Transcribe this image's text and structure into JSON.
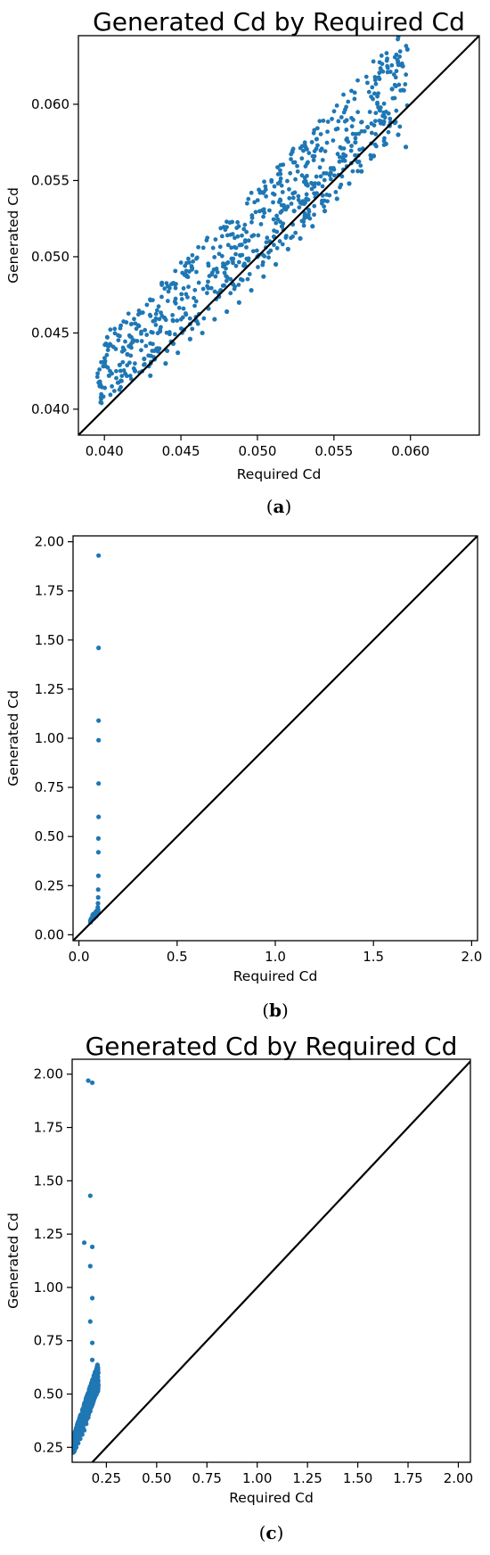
{
  "colors": {
    "points": "#1f77b4",
    "diagonal": "#000000",
    "axes": "#000000"
  },
  "chart_data": [
    {
      "type": "scatter",
      "title": "Generated Cd by Required Cd",
      "xlabel": "Required Cd",
      "ylabel": "Generated Cd",
      "xlim": [
        0.0383,
        0.0645
      ],
      "ylim": [
        0.0383,
        0.0645
      ],
      "xticks": [
        "0.040",
        "0.045",
        "0.050",
        "0.055",
        "0.060"
      ],
      "yticks": [
        "0.040",
        "0.045",
        "0.050",
        "0.055",
        "0.060"
      ],
      "reference_line": "y = x",
      "caption_letter": "a",
      "grid": false,
      "series": [
        {
          "points": [
            [
              0.0397,
              0.0418
            ],
            [
              0.0403,
              0.0422
            ],
            [
              0.041,
              0.0429
            ],
            [
              0.0415,
              0.0436
            ],
            [
              0.042,
              0.0425
            ],
            [
              0.0426,
              0.0433
            ],
            [
              0.043,
              0.0422
            ],
            [
              0.0435,
              0.0438
            ],
            [
              0.044,
              0.043
            ],
            [
              0.0445,
              0.0443
            ],
            [
              0.0448,
              0.0437
            ],
            [
              0.0452,
              0.0452
            ],
            [
              0.0456,
              0.0446
            ],
            [
              0.046,
              0.0458
            ],
            [
              0.0464,
              0.045
            ],
            [
              0.0468,
              0.0466
            ],
            [
              0.0472,
              0.0459
            ],
            [
              0.0476,
              0.0478
            ],
            [
              0.048,
              0.0464
            ],
            [
              0.0484,
              0.0482
            ],
            [
              0.0488,
              0.047
            ],
            [
              0.0492,
              0.0494
            ],
            [
              0.0496,
              0.0478
            ],
            [
              0.05,
              0.05
            ],
            [
              0.0504,
              0.0487
            ],
            [
              0.0508,
              0.051
            ],
            [
              0.0512,
              0.0495
            ],
            [
              0.0516,
              0.052
            ],
            [
              0.052,
              0.0505
            ],
            [
              0.0524,
              0.053
            ],
            [
              0.0528,
              0.0512
            ],
            [
              0.0532,
              0.0538
            ],
            [
              0.0536,
              0.052
            ],
            [
              0.054,
              0.0548
            ],
            [
              0.0544,
              0.053
            ],
            [
              0.0548,
              0.0558
            ],
            [
              0.0552,
              0.0538
            ],
            [
              0.0556,
              0.0565
            ],
            [
              0.056,
              0.0548
            ],
            [
              0.0564,
              0.0575
            ],
            [
              0.0568,
              0.0556
            ],
            [
              0.0572,
              0.0585
            ],
            [
              0.0576,
              0.0566
            ],
            [
              0.058,
              0.0596
            ],
            [
              0.0584,
              0.0574
            ],
            [
              0.0588,
              0.061
            ],
            [
              0.0592,
              0.058
            ],
            [
              0.0595,
              0.0625
            ],
            [
              0.0597,
              0.0572
            ],
            [
              0.0598,
              0.0636
            ]
          ]
        }
      ]
    },
    {
      "type": "scatter",
      "title": "",
      "xlabel": "Required Cd",
      "ylabel": "Generated Cd",
      "xlim": [
        -0.03,
        2.03
      ],
      "ylim": [
        -0.03,
        2.03
      ],
      "xticks": [
        "0.0",
        "0.5",
        "1.0",
        "1.5",
        "2.0"
      ],
      "yticks": [
        "0.00",
        "0.25",
        "0.50",
        "0.75",
        "1.00",
        "1.25",
        "1.50",
        "1.75",
        "2.00"
      ],
      "reference_line": "y = x",
      "caption_letter": "b",
      "grid": false,
      "series": [
        {
          "points": [
            [
              0.06,
              0.065
            ],
            [
              0.065,
              0.075
            ],
            [
              0.07,
              0.08
            ],
            [
              0.075,
              0.085
            ],
            [
              0.08,
              0.09
            ],
            [
              0.085,
              0.095
            ],
            [
              0.09,
              0.1
            ],
            [
              0.092,
              0.11
            ],
            [
              0.095,
              0.12
            ],
            [
              0.096,
              0.14
            ],
            [
              0.097,
              0.16
            ],
            [
              0.098,
              0.19
            ],
            [
              0.098,
              0.23
            ],
            [
              0.099,
              0.3
            ],
            [
              0.099,
              0.42
            ],
            [
              0.099,
              0.49
            ],
            [
              0.1,
              0.6
            ],
            [
              0.1,
              0.77
            ],
            [
              0.1,
              0.99
            ],
            [
              0.1,
              1.09
            ],
            [
              0.1,
              1.46
            ],
            [
              0.1,
              1.93
            ]
          ]
        }
      ]
    },
    {
      "type": "scatter",
      "title": "Generated Cd by Required Cd",
      "xlabel": "Required Cd",
      "ylabel": "Generated Cd",
      "xlim": [
        0.08,
        2.06
      ],
      "ylim": [
        0.18,
        2.07
      ],
      "xticks": [
        "0.25",
        "0.50",
        "0.75",
        "1.00",
        "1.25",
        "1.50",
        "1.75",
        "2.00"
      ],
      "yticks": [
        "0.25",
        "0.50",
        "0.75",
        "1.00",
        "1.25",
        "1.50",
        "1.75",
        "2.00"
      ],
      "reference_line": "y = x",
      "caption_letter": "c",
      "grid": false,
      "series": [
        {
          "points": [
            [
              0.09,
              0.23
            ],
            [
              0.1,
              0.25
            ],
            [
              0.11,
              0.27
            ],
            [
              0.12,
              0.29
            ],
            [
              0.13,
              0.31
            ],
            [
              0.14,
              0.33
            ],
            [
              0.15,
              0.36
            ],
            [
              0.16,
              0.39
            ],
            [
              0.17,
              0.42
            ],
            [
              0.18,
              0.45
            ],
            [
              0.19,
              0.48
            ],
            [
              0.2,
              0.52
            ],
            [
              0.2,
              0.56
            ],
            [
              0.21,
              0.6
            ],
            [
              0.18,
              0.66
            ],
            [
              0.18,
              0.74
            ],
            [
              0.17,
              0.84
            ],
            [
              0.18,
              0.95
            ],
            [
              0.17,
              1.1
            ],
            [
              0.18,
              1.19
            ],
            [
              0.14,
              1.21
            ],
            [
              0.17,
              1.43
            ],
            [
              0.16,
              1.97
            ],
            [
              0.18,
              1.96
            ]
          ]
        }
      ]
    }
  ]
}
